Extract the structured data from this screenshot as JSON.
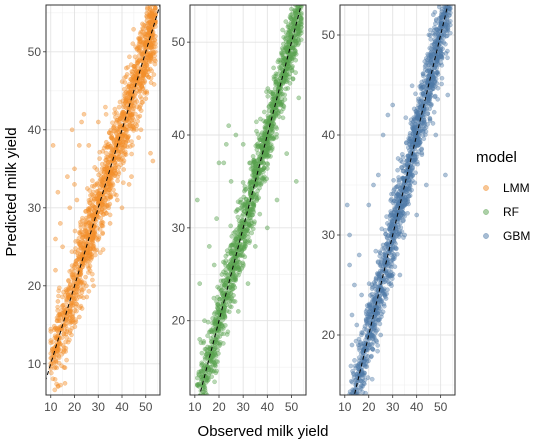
{
  "chart_data": {
    "type": "scatter",
    "layout": "facets-side-by-side",
    "xlabel": "Observed milk yield",
    "ylabel": "Predicted milk yield",
    "reference_line": {
      "style": "dashed",
      "color": "#000000",
      "slope": 1,
      "intercept": 0
    },
    "grid": true,
    "legend": {
      "title": "model",
      "placement": "right"
    },
    "panels": [
      {
        "series": "LMM",
        "color": "#F28E2B",
        "xlim": [
          8,
          56
        ],
        "ylim": [
          6,
          56
        ],
        "x_ticks": [
          10,
          20,
          30,
          40,
          50
        ],
        "y_ticks": [
          10,
          20,
          30,
          40,
          50
        ],
        "cloud": {
          "x_min": 10,
          "x_max": 54,
          "sd": 2.6
        },
        "points": [
          [
            11,
            38
          ],
          [
            12,
            26
          ],
          [
            12,
            22
          ],
          [
            13,
            18
          ],
          [
            13,
            32
          ],
          [
            14,
            28
          ],
          [
            15,
            15
          ],
          [
            15,
            25
          ],
          [
            16,
            9.5
          ],
          [
            16,
            7.5
          ],
          [
            17,
            34
          ],
          [
            18,
            30
          ],
          [
            19,
            40
          ],
          [
            20,
            35
          ],
          [
            22,
            38
          ],
          [
            23,
            41
          ],
          [
            24,
            42
          ],
          [
            22,
            16
          ],
          [
            25,
            20
          ],
          [
            28,
            20
          ],
          [
            35,
            28
          ],
          [
            38,
            31
          ],
          [
            40,
            30
          ],
          [
            44,
            34
          ],
          [
            48,
            40
          ],
          [
            52,
            37
          ],
          [
            53,
            36
          ],
          [
            54,
            52
          ],
          [
            18,
            14
          ],
          [
            20,
            33
          ],
          [
            21,
            31
          ],
          [
            26,
            38
          ],
          [
            30,
            41
          ],
          [
            43,
            33
          ],
          [
            47,
            39
          ],
          [
            50,
            44
          ]
        ]
      },
      {
        "series": "RF",
        "color": "#59A14F",
        "xlim": [
          8,
          56
        ],
        "ylim": [
          12,
          54
        ],
        "x_ticks": [
          10,
          20,
          30,
          40,
          50
        ],
        "y_ticks": [
          20,
          30,
          40,
          50
        ],
        "cloud": {
          "x_min": 11,
          "x_max": 54,
          "sd": 1.8
        },
        "points": [
          [
            11,
            33
          ],
          [
            12,
            24
          ],
          [
            12,
            18
          ],
          [
            13,
            13
          ],
          [
            14,
            20
          ],
          [
            16,
            28
          ],
          [
            18,
            26
          ],
          [
            20,
            37
          ],
          [
            22,
            37
          ],
          [
            23,
            39
          ],
          [
            24,
            41
          ],
          [
            27,
            40
          ],
          [
            30,
            39
          ],
          [
            35,
            28
          ],
          [
            40,
            30
          ],
          [
            44,
            33
          ],
          [
            48,
            38
          ],
          [
            52,
            35
          ],
          [
            53,
            44
          ],
          [
            54,
            52
          ],
          [
            15,
            16
          ],
          [
            28,
            21
          ],
          [
            32,
            24
          ],
          [
            19,
            31
          ],
          [
            25,
            35
          ]
        ]
      },
      {
        "series": "GBM",
        "color": "#4E79A7",
        "xlim": [
          8,
          56
        ],
        "ylim": [
          14,
          53
        ],
        "x_ticks": [
          10,
          20,
          30,
          40,
          50
        ],
        "y_ticks": [
          20,
          30,
          40,
          50
        ],
        "cloud": {
          "x_min": 12,
          "x_max": 54,
          "sd": 1.9
        },
        "points": [
          [
            11,
            33
          ],
          [
            12,
            30
          ],
          [
            12,
            27
          ],
          [
            13,
            22
          ],
          [
            13,
            19
          ],
          [
            14,
            25
          ],
          [
            16,
            28
          ],
          [
            17,
            24
          ],
          [
            18,
            16
          ],
          [
            20,
            33
          ],
          [
            22,
            35
          ],
          [
            24,
            36
          ],
          [
            26,
            40
          ],
          [
            28,
            42
          ],
          [
            30,
            43
          ],
          [
            35,
            30
          ],
          [
            40,
            32
          ],
          [
            44,
            35
          ],
          [
            48,
            40
          ],
          [
            52,
            36
          ],
          [
            53,
            44
          ],
          [
            54,
            51
          ],
          [
            15,
            21
          ],
          [
            25,
            20
          ],
          [
            33,
            26
          ],
          [
            26,
            29
          ]
        ]
      }
    ]
  },
  "legend": {
    "title": "model",
    "items": [
      {
        "label": "LMM",
        "color": "#F28E2B"
      },
      {
        "label": "RF",
        "color": "#59A14F"
      },
      {
        "label": "GBM",
        "color": "#4E79A7"
      }
    ]
  }
}
